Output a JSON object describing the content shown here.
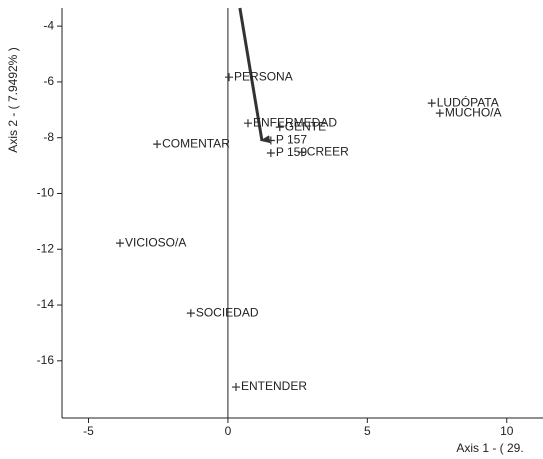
{
  "chart_data": {
    "type": "scatter",
    "xlabel": "Axis 1 - ( 29.",
    "ylabel": "Axis 2 - ( 7.9492% )",
    "xlim": [
      -5.95,
      11.3
    ],
    "ylim": [
      -18.05,
      -3.35
    ],
    "xticks": [
      -5,
      0,
      5,
      10
    ],
    "yticks": [
      -4,
      -6,
      -8,
      -10,
      -12,
      -14,
      -16
    ],
    "color": "#333333",
    "labels": [
      "PERSONA",
      "ENFERMEDAD",
      "GENTE",
      "P 157",
      "P 159",
      "CREER",
      "COMENTAR",
      "LUDÓPATA",
      "MUCHO/A",
      "VICIOSO/A",
      "SOCIEDAD",
      "ENTENDER"
    ],
    "x": [
      0.04,
      0.72,
      1.86,
      1.54,
      1.54,
      2.65,
      -2.54,
      7.31,
      7.6,
      -3.87,
      -1.33,
      0.29
    ],
    "values": [
      -5.83,
      -7.48,
      -7.62,
      -8.1,
      -8.55,
      -8.52,
      -8.23,
      -6.76,
      -7.12,
      -11.78,
      -14.29,
      -16.94
    ],
    "arrow": {
      "from": [
        0.43,
        -3.35
      ],
      "to": [
        1.22,
        -8.1
      ]
    }
  }
}
